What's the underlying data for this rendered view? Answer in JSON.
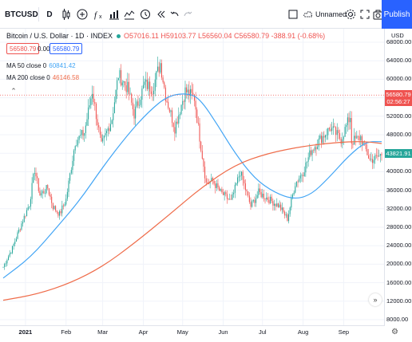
{
  "toolbar": {
    "symbol": "BTCUSD",
    "interval": "D",
    "layout_name": "Unnamed",
    "publish_label": "Publish",
    "icons": [
      "bar-style-icon",
      "compare-icon",
      "indicators-icon",
      "financials-icon",
      "templates-icon",
      "alert-icon",
      "replay-icon",
      "undo-icon",
      "redo-icon",
      "layout-icon",
      "cloud-icon",
      "settings-icon",
      "fullscreen-icon",
      "snapshot-icon"
    ]
  },
  "legend": {
    "title": "Bitcoin / U.S. Dollar · 1D · INDEX",
    "open": "O57016.11",
    "high": "H59103.77",
    "low": "L56560.04",
    "close": "C56580.79",
    "change": "-388.91 (-0.68%)",
    "bid": "56580.79",
    "spread": "0.00",
    "ask": "56580.79"
  },
  "indicators": [
    {
      "label": "MA 50 close 0",
      "value": "60841.42",
      "color": "#42a5f5"
    },
    {
      "label": "MA 200 close 0",
      "value": "46146.58",
      "color": "#ef6c4a"
    }
  ],
  "price_scale": {
    "currency": "USD",
    "current_price_label": "56580.79",
    "countdown": "02:56:27",
    "last_price_label": "43821.91",
    "current_price_color": "#ef5350",
    "last_price_color": "#26a69a"
  },
  "chart_data": {
    "type": "candlestick",
    "x_ticks": [
      "2021",
      "Feb",
      "Mar",
      "Apr",
      "May",
      "Jun",
      "Jul",
      "Aug",
      "Sep"
    ],
    "y_ticks": [
      68000,
      64000,
      60000,
      56000,
      52000,
      48000,
      44000,
      40000,
      36000,
      32000,
      28000,
      24000,
      20000,
      16000,
      12000,
      8000
    ],
    "y_tick_labels": [
      "68000.00",
      "64000.00",
      "60000.00",
      "56000.00",
      "52000.00",
      "48000.00",
      "44000.00",
      "40000.00",
      "36000.00",
      "32000.00",
      "28000.00",
      "24000.00",
      "20000.00",
      "16000.00",
      "12000.00",
      "8000.00"
    ],
    "ylim": [
      6000,
      68000
    ],
    "up_color": "#26a69a",
    "down_color": "#ef5350",
    "close_path": [
      [
        "2020-12-15",
        19400
      ],
      [
        "2020-12-22",
        23500
      ],
      [
        "2020-12-29",
        28800
      ],
      [
        "2021-01-04",
        33000
      ],
      [
        "2021-01-08",
        40500
      ],
      [
        "2021-01-12",
        35000
      ],
      [
        "2021-01-18",
        36500
      ],
      [
        "2021-01-22",
        32500
      ],
      [
        "2021-01-27",
        30800
      ],
      [
        "2021-02-01",
        34000
      ],
      [
        "2021-02-08",
        46500
      ],
      [
        "2021-02-15",
        48500
      ],
      [
        "2021-02-21",
        57500
      ],
      [
        "2021-02-28",
        45500
      ],
      [
        "2021-03-08",
        51500
      ],
      [
        "2021-03-13",
        61000
      ],
      [
        "2021-03-20",
        58000
      ],
      [
        "2021-03-25",
        52500
      ],
      [
        "2021-04-02",
        59000
      ],
      [
        "2021-04-08",
        58000
      ],
      [
        "2021-04-14",
        63500
      ],
      [
        "2021-04-18",
        56500
      ],
      [
        "2021-04-25",
        49500
      ],
      [
        "2021-05-03",
        57500
      ],
      [
        "2021-05-10",
        56000
      ],
      [
        "2021-05-13",
        49500
      ],
      [
        "2021-05-19",
        37500
      ],
      [
        "2021-05-24",
        38000
      ],
      [
        "2021-05-30",
        35500
      ],
      [
        "2021-06-07",
        33500
      ],
      [
        "2021-06-14",
        40000
      ],
      [
        "2021-06-22",
        32500
      ],
      [
        "2021-06-28",
        35500
      ],
      [
        "2021-07-06",
        34000
      ],
      [
        "2021-07-14",
        32500
      ],
      [
        "2021-07-20",
        29800
      ],
      [
        "2021-07-26",
        37500
      ],
      [
        "2021-08-01",
        40000
      ],
      [
        "2021-08-07",
        44500
      ],
      [
        "2021-08-14",
        47000
      ],
      [
        "2021-08-22",
        49500
      ],
      [
        "2021-08-30",
        47000
      ],
      [
        "2021-09-06",
        52000
      ],
      [
        "2021-09-07",
        46500
      ],
      [
        "2021-09-14",
        47500
      ],
      [
        "2021-09-21",
        42500
      ],
      [
        "2021-09-26",
        43000
      ],
      [
        "2021-09-30",
        43800
      ]
    ],
    "series": [
      {
        "name": "MA 50 close 0",
        "color": "#42a5f5",
        "points": [
          [
            "2020-12-15",
            17000
          ],
          [
            "2021-01-05",
            21500
          ],
          [
            "2021-01-25",
            28000
          ],
          [
            "2021-02-12",
            34000
          ],
          [
            "2021-03-01",
            41000
          ],
          [
            "2021-03-20",
            48000
          ],
          [
            "2021-04-05",
            53000
          ],
          [
            "2021-04-20",
            56500
          ],
          [
            "2021-05-06",
            57000
          ],
          [
            "2021-05-15",
            55500
          ],
          [
            "2021-05-28",
            50000
          ],
          [
            "2021-06-10",
            44000
          ],
          [
            "2021-06-25",
            38500
          ],
          [
            "2021-07-10",
            35500
          ],
          [
            "2021-07-25",
            34000
          ],
          [
            "2021-08-07",
            35000
          ],
          [
            "2021-08-20",
            38500
          ],
          [
            "2021-09-05",
            43500
          ],
          [
            "2021-09-18",
            46500
          ],
          [
            "2021-09-30",
            46500
          ]
        ]
      },
      {
        "name": "MA 200 close 0",
        "color": "#ef6c4a",
        "points": [
          [
            "2020-12-15",
            12200
          ],
          [
            "2021-01-10",
            13500
          ],
          [
            "2021-02-05",
            16000
          ],
          [
            "2021-03-01",
            19500
          ],
          [
            "2021-03-25",
            24500
          ],
          [
            "2021-04-20",
            30500
          ],
          [
            "2021-05-15",
            36500
          ],
          [
            "2021-06-10",
            41500
          ],
          [
            "2021-07-05",
            44000
          ],
          [
            "2021-08-01",
            45500
          ],
          [
            "2021-08-25",
            46300
          ],
          [
            "2021-09-15",
            46600
          ],
          [
            "2021-09-30",
            46100
          ]
        ]
      }
    ]
  }
}
